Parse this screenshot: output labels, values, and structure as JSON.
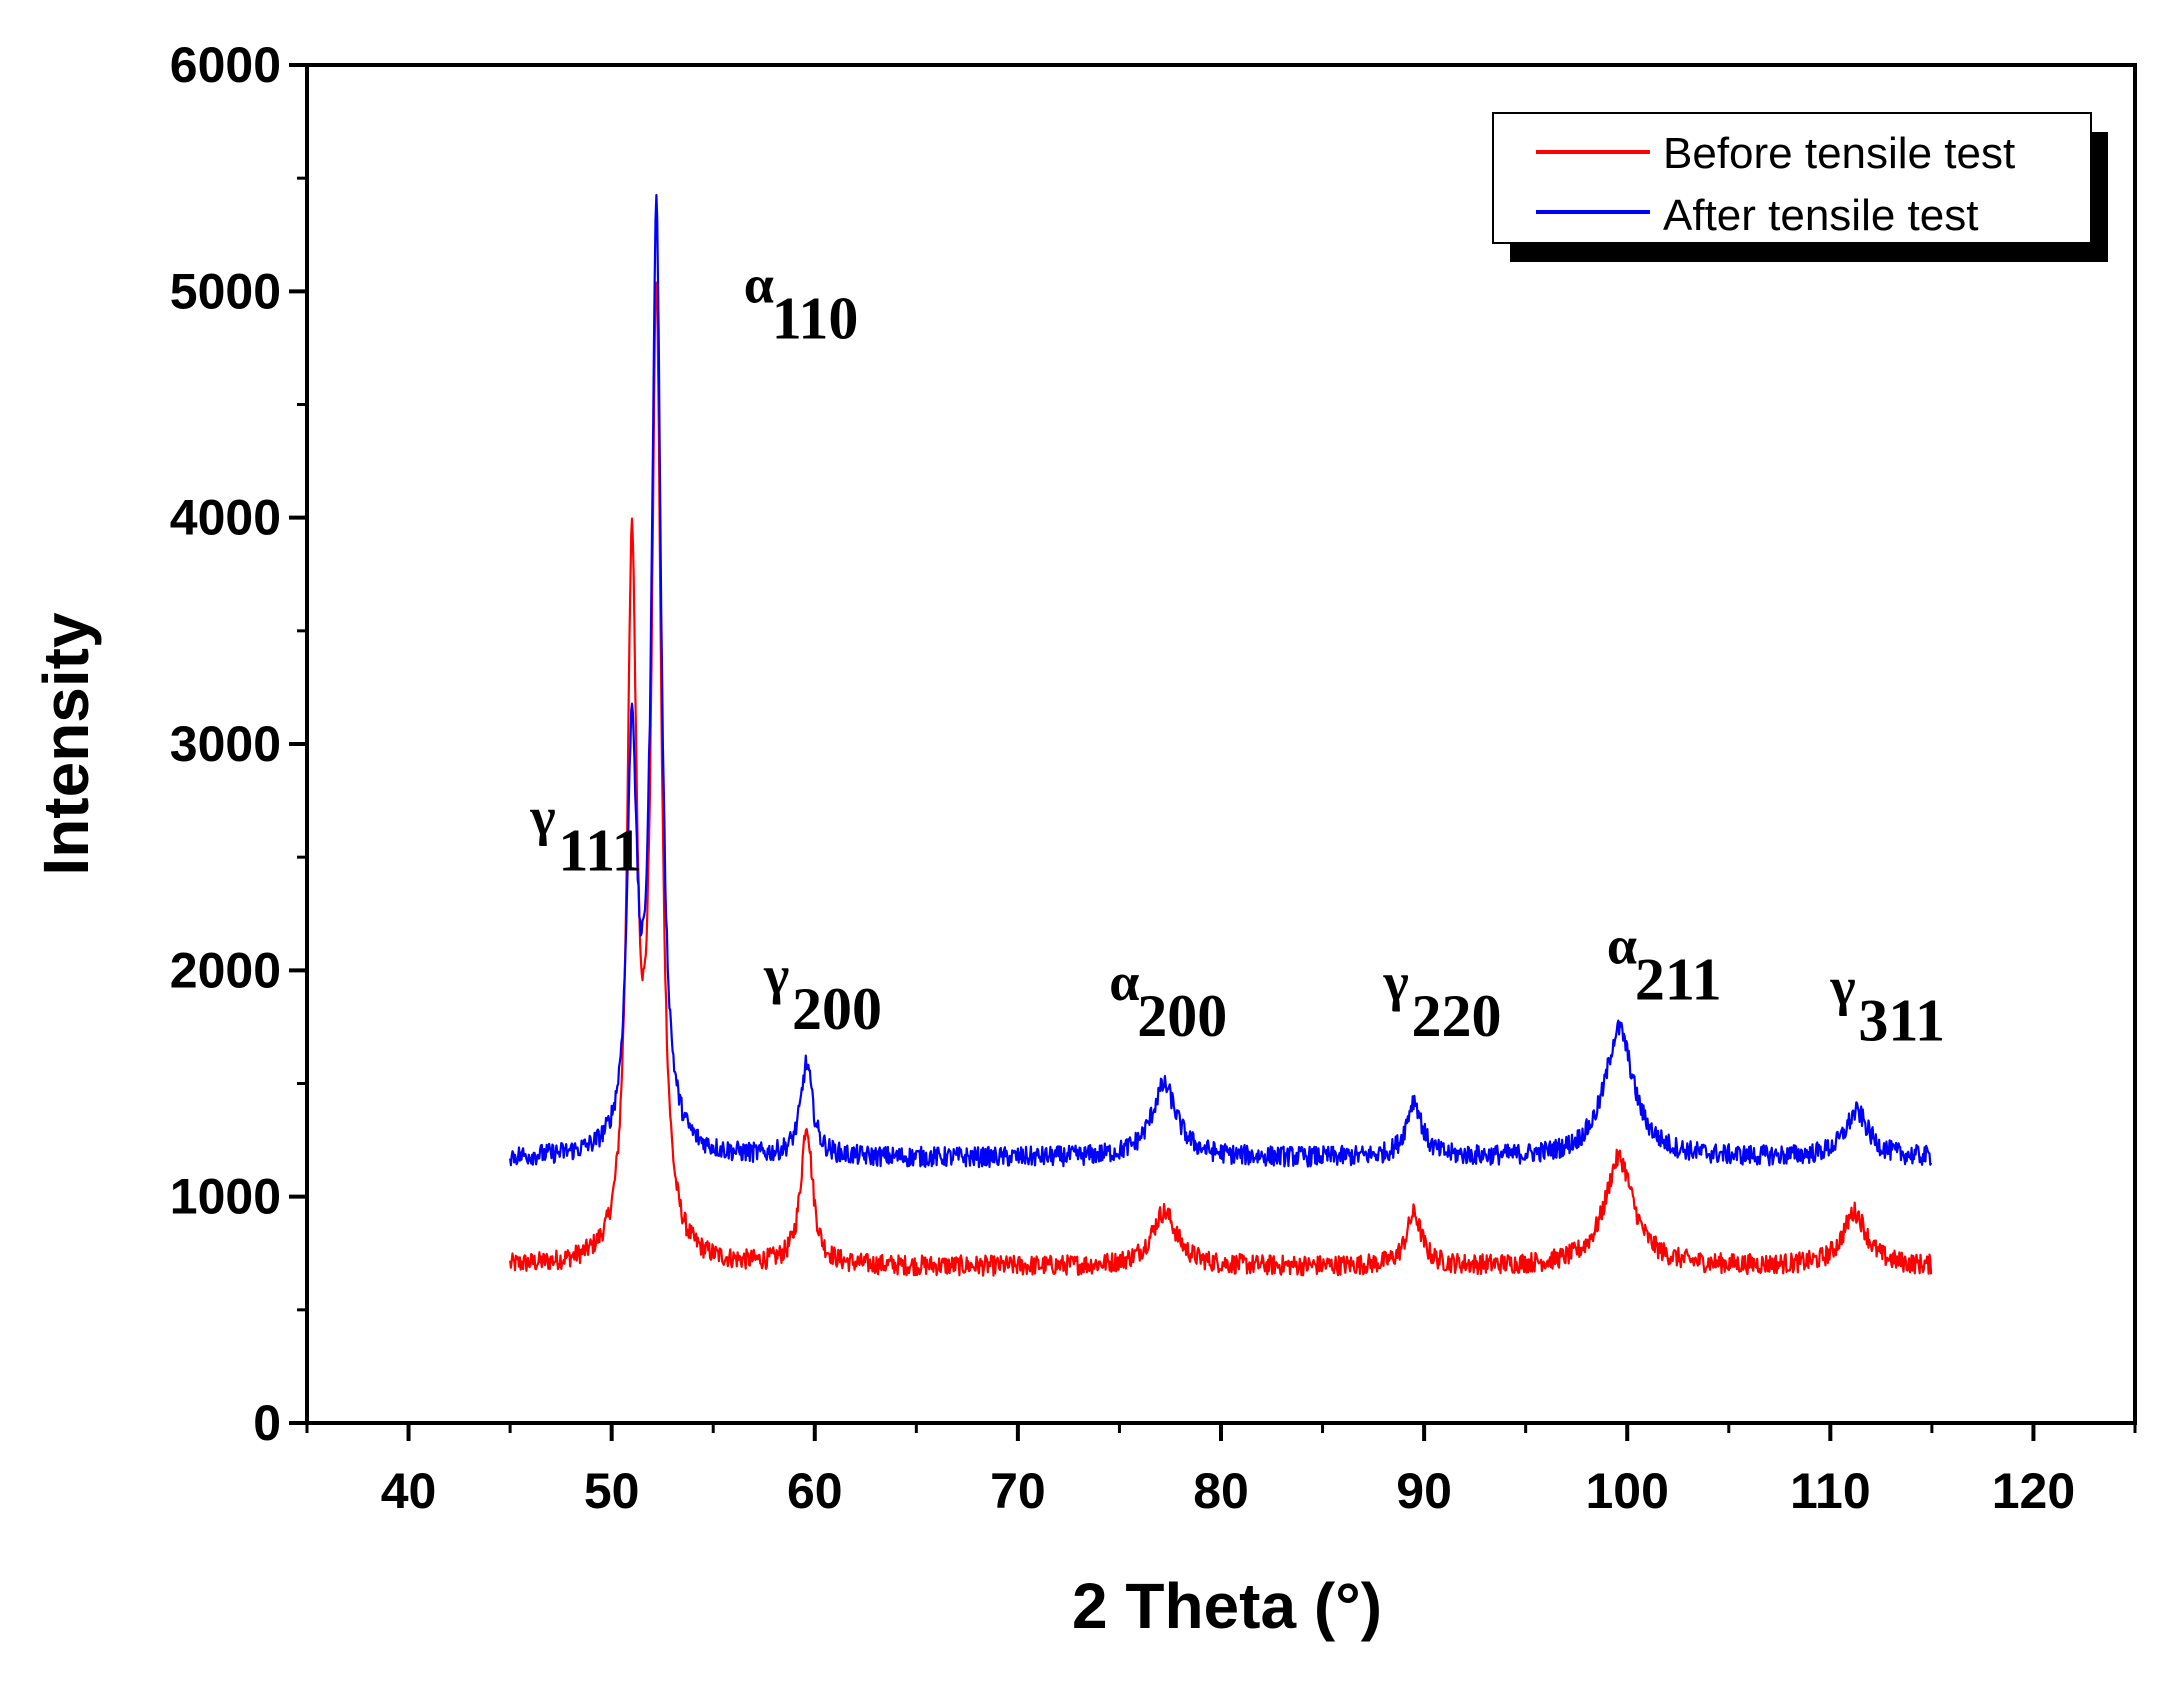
{
  "chart_data": {
    "type": "line",
    "title": "",
    "xlabel": "2 Theta (°)",
    "ylabel": "Intensity",
    "xlim": [
      35,
      125
    ],
    "ylim": [
      0,
      6000
    ],
    "x_ticks": [
      "40",
      "50",
      "60",
      "70",
      "80",
      "90",
      "100",
      "110",
      "120"
    ],
    "y_ticks": [
      "0",
      "1000",
      "2000",
      "3000",
      "4000",
      "5000",
      "6000"
    ],
    "x_range_measured": [
      45,
      115
    ],
    "legend": {
      "position": "top-right",
      "entries": [
        "Before tensile test",
        "After tensile test"
      ]
    },
    "series": [
      {
        "name": "Before tensile test",
        "color": "#ff0000",
        "baseline": 690,
        "peaks": [
          {
            "x": 51.0,
            "y": 3750
          },
          {
            "x": 52.2,
            "y": 4900
          },
          {
            "x": 59.6,
            "y": 1310
          },
          {
            "x": 77.2,
            "y": 930
          },
          {
            "x": 89.5,
            "y": 920
          },
          {
            "x": 99.6,
            "y": 1170
          },
          {
            "x": 111.2,
            "y": 930
          }
        ]
      },
      {
        "name": "After tensile test",
        "color": "#0000ff",
        "baseline": 1170,
        "peaks": [
          {
            "x": 51.0,
            "y": 2970
          },
          {
            "x": 52.2,
            "y": 5300
          },
          {
            "x": 59.6,
            "y": 1580
          },
          {
            "x": 77.2,
            "y": 1490
          },
          {
            "x": 89.5,
            "y": 1420
          },
          {
            "x": 99.6,
            "y": 1740
          },
          {
            "x": 111.3,
            "y": 1370
          }
        ]
      }
    ],
    "annotations": [
      {
        "greek": "γ",
        "sub": "111",
        "x": 46.0,
        "y": 2600
      },
      {
        "greek": "α",
        "sub": "110",
        "x": 56.5,
        "y": 4950
      },
      {
        "greek": "γ",
        "sub": "200",
        "x": 57.5,
        "y": 1900
      },
      {
        "greek": "α",
        "sub": "200",
        "x": 74.5,
        "y": 1870
      },
      {
        "greek": "γ",
        "sub": "220",
        "x": 88.0,
        "y": 1870
      },
      {
        "greek": "α",
        "sub": "211",
        "x": 99.0,
        "y": 2030
      },
      {
        "greek": "γ",
        "sub": "311",
        "x": 110.0,
        "y": 1850
      }
    ]
  }
}
